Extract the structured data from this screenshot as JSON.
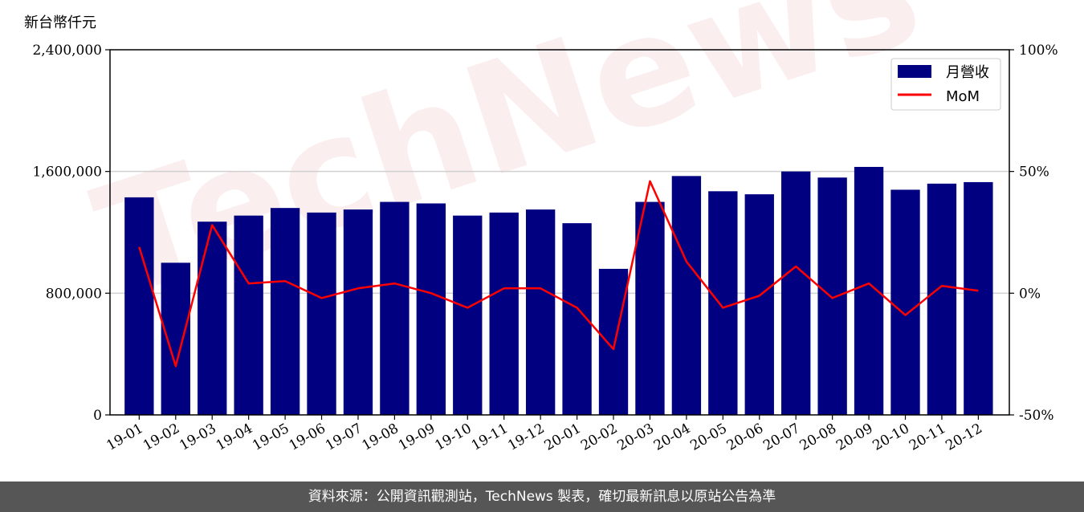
{
  "unit_label": "新台幣仟元",
  "watermark": "TechNews",
  "footer": "資料來源：公開資訊觀測站，TechNews 製表，確切最新訊息以原站公告為準",
  "colors": {
    "bar": "#000080",
    "line": "#ff0000",
    "footer_bg": "#565656"
  },
  "chart_data": {
    "type": "bar",
    "categories": [
      "19-01",
      "19-02",
      "19-03",
      "19-04",
      "19-05",
      "19-06",
      "19-07",
      "19-08",
      "19-09",
      "19-10",
      "19-11",
      "19-12",
      "20-01",
      "20-02",
      "20-03",
      "20-04",
      "20-05",
      "20-06",
      "20-07",
      "20-08",
      "20-09",
      "20-10",
      "20-11",
      "20-12"
    ],
    "series": [
      {
        "name": "月營收",
        "type": "bar",
        "axis": "left",
        "values": [
          1430000,
          1000000,
          1270000,
          1310000,
          1360000,
          1330000,
          1350000,
          1400000,
          1390000,
          1310000,
          1330000,
          1350000,
          1260000,
          960000,
          1400000,
          1570000,
          1470000,
          1450000,
          1600000,
          1560000,
          1630000,
          1480000,
          1520000,
          1530000
        ]
      },
      {
        "name": "MoM",
        "type": "line",
        "axis": "right",
        "values": [
          19,
          -30,
          28,
          4,
          5,
          -2,
          2,
          4,
          0,
          -6,
          2,
          2,
          -6,
          -23,
          46,
          13,
          -6,
          -1,
          11,
          -2,
          4,
          -9,
          3,
          1
        ]
      }
    ],
    "y_left": {
      "ylim": [
        0,
        2400000
      ],
      "ticks": [
        0,
        800000,
        1600000,
        2400000
      ],
      "tick_labels": [
        "0",
        "800,000",
        "1,600,000",
        "2,400,000"
      ]
    },
    "y_right": {
      "ylim": [
        -50,
        100
      ],
      "ticks": [
        -50,
        0,
        50,
        100
      ],
      "tick_labels": [
        "-50%",
        "0%",
        "50%",
        "100%"
      ]
    },
    "grid": "horizontal",
    "legend": {
      "placement": "top-right",
      "entries": [
        "月營收",
        "MoM"
      ]
    }
  }
}
